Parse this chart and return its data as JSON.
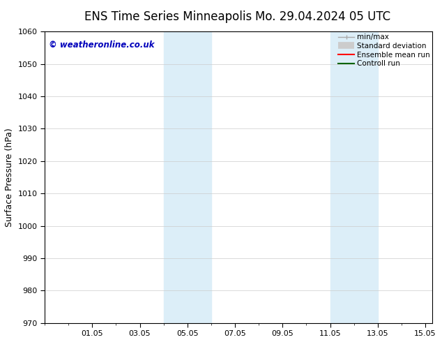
{
  "title_left": "ENS Time Series Minneapolis",
  "title_right": "Mo. 29.04.2024 05 UTC",
  "ylabel": "Surface Pressure (hPa)",
  "ylim": [
    970,
    1060
  ],
  "yticks": [
    970,
    980,
    990,
    1000,
    1010,
    1020,
    1030,
    1040,
    1050,
    1060
  ],
  "xtick_labels": [
    "01.05",
    "03.05",
    "05.05",
    "07.05",
    "09.05",
    "11.05",
    "13.05",
    "15.05"
  ],
  "xtick_positions": [
    1,
    3,
    5,
    7,
    9,
    11,
    13,
    15
  ],
  "x_min": -0.8,
  "x_max": 15.3,
  "shaded_bands": [
    {
      "x_start": 4.0,
      "x_end": 6.0
    },
    {
      "x_start": 11.0,
      "x_end": 13.0
    }
  ],
  "shaded_color": "#dceef8",
  "watermark_text": "© weatheronline.co.uk",
  "watermark_color": "#0000bb",
  "grid_color": "#cccccc",
  "bg_color": "#ffffff",
  "tick_font_size": 8,
  "label_font_size": 9,
  "title_font_size": 12
}
